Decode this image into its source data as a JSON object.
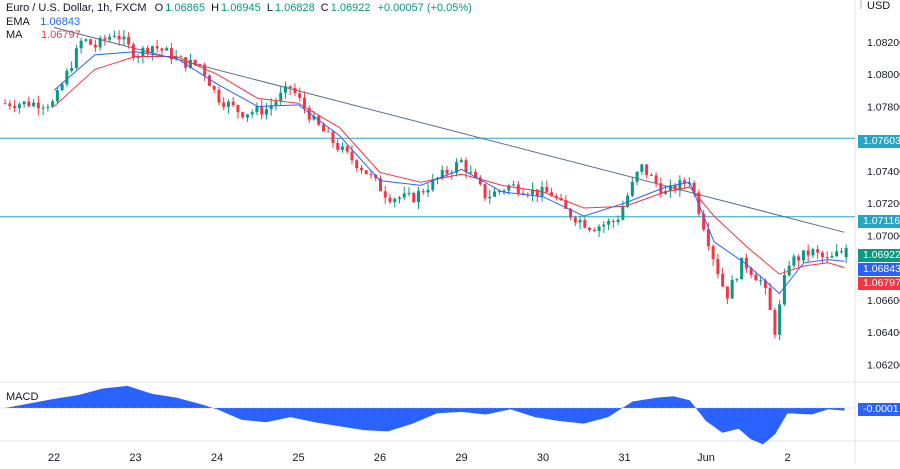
{
  "legend": {
    "title": "Euro / U.S. Dollar, 1h, FXCM",
    "o_label": "O",
    "o_value": "1.06865",
    "h_label": "H",
    "h_value": "1.06945",
    "l_label": "L",
    "l_value": "1.06828",
    "c_label": "C",
    "c_value": "1.06922",
    "change": "+0.00057 (+0.05%)",
    "ema_label": "EMA",
    "ema_value": "1.06843",
    "ma_label": "MA",
    "ma_value": "1.06797"
  },
  "macd": {
    "label": "MACD",
    "value_badge": "-0.0001"
  },
  "price_badges": {
    "resistance": "1.07603",
    "support": "1.07116",
    "close": "1.06922",
    "ema": "1.06843",
    "ma": "1.06797"
  },
  "colors": {
    "up": "#089981",
    "down": "#f23645",
    "ema": "#2962ff",
    "ma": "#f23645",
    "trendline": "#5b6e8a",
    "level": "#26a6c6",
    "macd": "#2962ff"
  },
  "chart_data": {
    "type": "candlestick",
    "currency": "USD",
    "x_ticks": [
      "22",
      "23",
      "24",
      "25",
      "26",
      "29",
      "30",
      "31",
      "Jun",
      "2"
    ],
    "y_ticks": [
      "1.08200",
      "1.08000",
      "1.07800",
      "1.07600",
      "1.07400",
      "1.07200",
      "1.07000",
      "1.06800",
      "1.06600",
      "1.06400",
      "1.06200"
    ],
    "ylim": [
      1.0614,
      1.0838
    ],
    "levels": [
      1.07603,
      1.07116
    ],
    "trendline": {
      "start": [
        0,
        1.0829
      ],
      "end": [
        10,
        1.0702
      ]
    },
    "close_path": [
      [
        0,
        1.0782
      ],
      [
        0.2,
        1.0805
      ],
      [
        0.35,
        1.0822
      ],
      [
        0.5,
        1.0817
      ],
      [
        0.75,
        1.0826
      ],
      [
        1,
        1.0812
      ],
      [
        1.2,
        1.0818
      ],
      [
        1.4,
        1.0813
      ],
      [
        1.6,
        1.0807
      ],
      [
        1.8,
        1.0806
      ],
      [
        2.0,
        1.0786
      ],
      [
        2.3,
        1.0776
      ],
      [
        2.6,
        1.0778
      ],
      [
        2.9,
        1.0792
      ],
      [
        3.2,
        1.077
      ],
      [
        3.5,
        1.0754
      ],
      [
        3.8,
        1.0741
      ],
      [
        4.1,
        1.0724
      ],
      [
        4.4,
        1.0723
      ],
      [
        4.7,
        1.0735
      ],
      [
        5.0,
        1.0746
      ],
      [
        5.3,
        1.0724
      ],
      [
        5.6,
        1.0731
      ],
      [
        5.9,
        1.0727
      ],
      [
        6.1,
        1.0726
      ],
      [
        6.3,
        1.0714
      ],
      [
        6.6,
        1.0705
      ],
      [
        6.9,
        1.0709
      ],
      [
        7.2,
        1.0743
      ],
      [
        7.5,
        1.0726
      ],
      [
        7.8,
        1.0735
      ],
      [
        8.1,
        1.0685
      ],
      [
        8.25,
        1.0662
      ],
      [
        8.45,
        1.0684
      ],
      [
        8.7,
        1.067
      ],
      [
        8.85,
        1.064
      ],
      [
        9.0,
        1.0683
      ],
      [
        9.3,
        1.069
      ],
      [
        9.5,
        1.0684
      ],
      [
        9.7,
        1.0692
      ]
    ],
    "ema_path": [
      [
        0,
        1.079
      ],
      [
        0.5,
        1.0812
      ],
      [
        1,
        1.0814
      ],
      [
        1.5,
        1.081
      ],
      [
        2,
        1.0794
      ],
      [
        2.5,
        1.078
      ],
      [
        3,
        1.0781
      ],
      [
        3.5,
        1.0762
      ],
      [
        4,
        1.0734
      ],
      [
        4.5,
        1.0731
      ],
      [
        5,
        1.0741
      ],
      [
        5.5,
        1.0727
      ],
      [
        6,
        1.0724
      ],
      [
        6.5,
        1.0712
      ],
      [
        7,
        1.072
      ],
      [
        7.5,
        1.073
      ],
      [
        7.8,
        1.0733
      ],
      [
        8.1,
        1.0696
      ],
      [
        8.5,
        1.0682
      ],
      [
        8.9,
        1.0664
      ],
      [
        9.2,
        1.0683
      ],
      [
        9.5,
        1.0685
      ],
      [
        9.7,
        1.0684
      ]
    ],
    "ma_path": [
      [
        0,
        1.078
      ],
      [
        0.5,
        1.0803
      ],
      [
        1,
        1.0811
      ],
      [
        1.5,
        1.0811
      ],
      [
        2,
        1.08
      ],
      [
        2.5,
        1.0785
      ],
      [
        3,
        1.0782
      ],
      [
        3.5,
        1.0767
      ],
      [
        4,
        1.0739
      ],
      [
        4.5,
        1.0733
      ],
      [
        5,
        1.0738
      ],
      [
        5.5,
        1.0731
      ],
      [
        6,
        1.0727
      ],
      [
        6.5,
        1.0717
      ],
      [
        7,
        1.0718
      ],
      [
        7.5,
        1.0727
      ],
      [
        7.8,
        1.073
      ],
      [
        8.1,
        1.0712
      ],
      [
        8.5,
        1.0693
      ],
      [
        8.9,
        1.0676
      ],
      [
        9.2,
        1.0681
      ],
      [
        9.5,
        1.0683
      ],
      [
        9.7,
        1.068
      ]
    ],
    "macd_histogram": [
      [
        0,
        0.35
      ],
      [
        0.3,
        0.5
      ],
      [
        0.6,
        0.75
      ],
      [
        0.9,
        0.85
      ],
      [
        1.2,
        0.55
      ],
      [
        1.5,
        0.4
      ],
      [
        1.8,
        0.15
      ],
      [
        2.0,
        -0.05
      ],
      [
        2.3,
        -0.45
      ],
      [
        2.6,
        -0.55
      ],
      [
        2.9,
        -0.35
      ],
      [
        3.2,
        -0.55
      ],
      [
        3.5,
        -0.7
      ],
      [
        3.8,
        -0.85
      ],
      [
        4.1,
        -0.9
      ],
      [
        4.4,
        -0.6
      ],
      [
        4.7,
        -0.2
      ],
      [
        5.0,
        -0.15
      ],
      [
        5.3,
        -0.25
      ],
      [
        5.6,
        -0.05
      ],
      [
        5.9,
        -0.35
      ],
      [
        6.2,
        -0.5
      ],
      [
        6.5,
        -0.6
      ],
      [
        6.8,
        -0.35
      ],
      [
        7.1,
        0.25
      ],
      [
        7.4,
        0.4
      ],
      [
        7.6,
        0.45
      ],
      [
        7.8,
        0.3
      ],
      [
        8.0,
        -0.5
      ],
      [
        8.2,
        -0.95
      ],
      [
        8.4,
        -0.8
      ],
      [
        8.55,
        -1.2
      ],
      [
        8.7,
        -1.4
      ],
      [
        8.85,
        -1.0
      ],
      [
        9.0,
        -0.2
      ],
      [
        9.3,
        -0.25
      ],
      [
        9.5,
        -0.05
      ],
      [
        9.7,
        -0.1
      ]
    ]
  }
}
